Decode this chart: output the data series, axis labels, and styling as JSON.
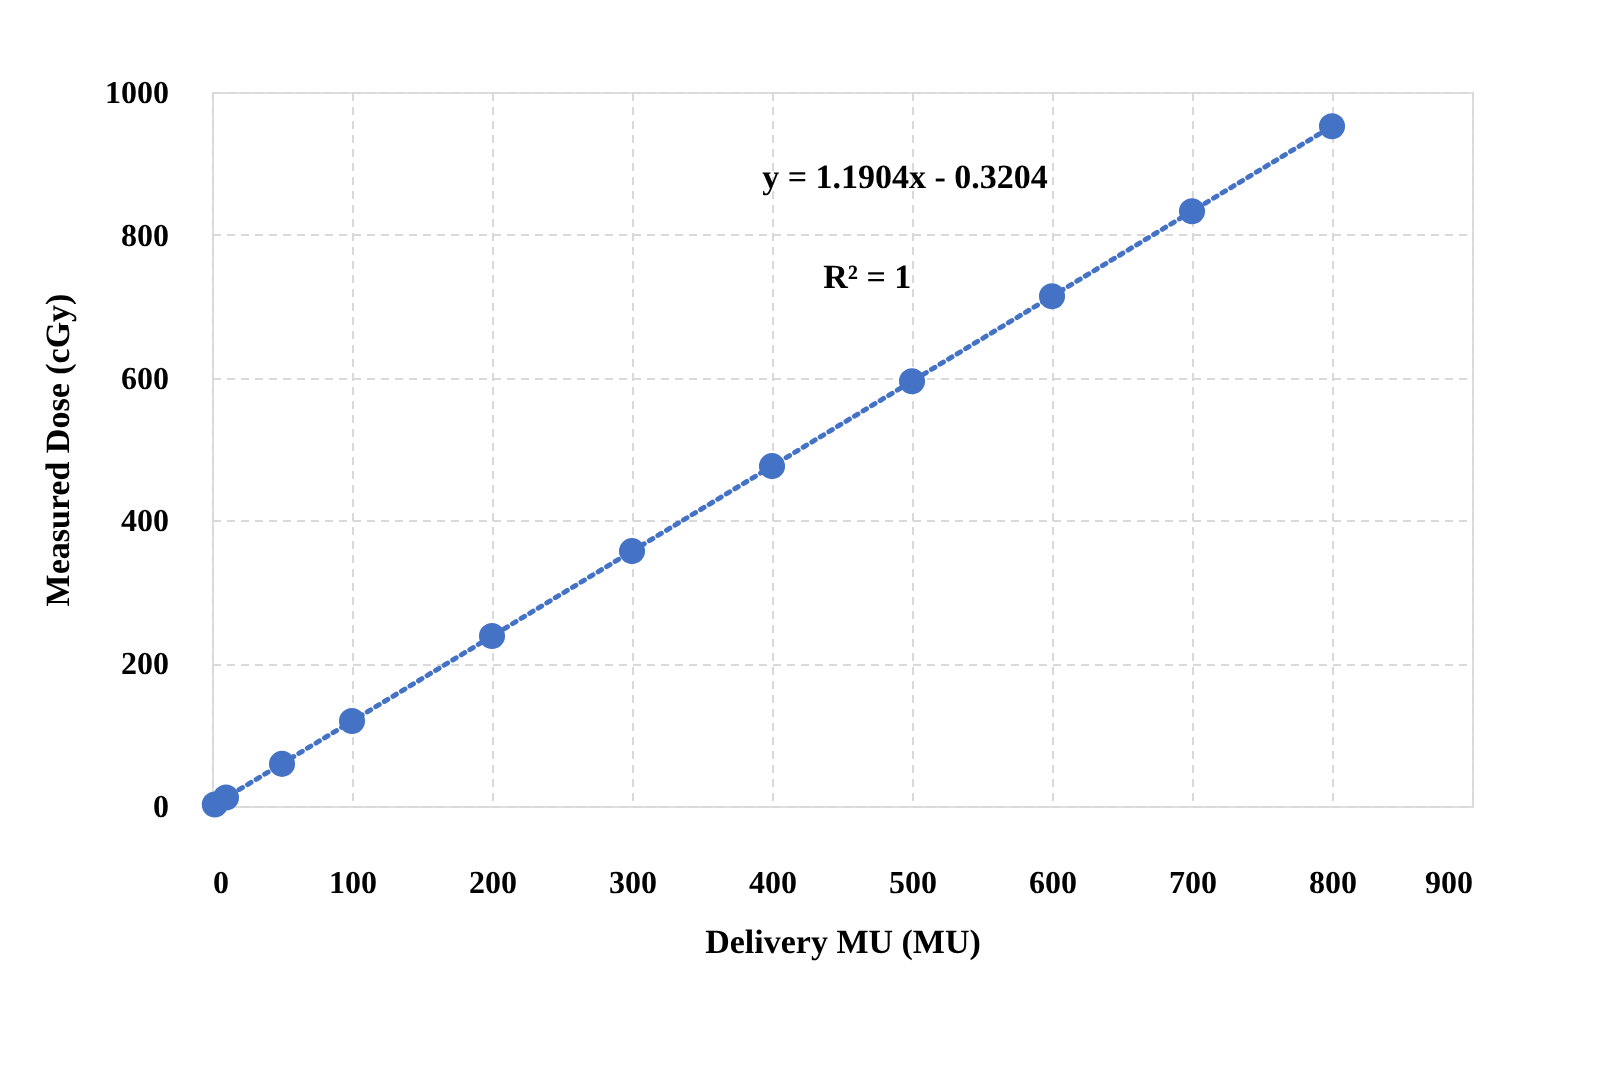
{
  "chart_data": {
    "type": "scatter",
    "xlabel": "Delivery MU (MU)",
    "ylabel": "Measured Dose (cGy)",
    "annotations": [
      "y = 1.1904x - 0.3204",
      "R² = 1"
    ],
    "series": [
      {
        "color": "#4472c4",
        "marker": "circle",
        "x": [
          2,
          10,
          50,
          100,
          200,
          300,
          400,
          500,
          600,
          700,
          800
        ],
        "values": [
          2,
          12,
          59,
          119,
          238,
          357,
          476,
          595,
          714,
          833,
          952
        ]
      },
      {
        "type": "line",
        "color": "#4472c4",
        "line_style": "dotted",
        "x": [
          1,
          800
        ],
        "values": [
          1,
          952
        ]
      }
    ],
    "xlim": [
      0,
      900
    ],
    "xticks": [
      0,
      100,
      200,
      300,
      400,
      500,
      600,
      700,
      800,
      900
    ],
    "ylim": [
      0,
      1000
    ],
    "yticks": [
      0,
      200,
      400,
      600,
      800,
      1000
    ],
    "grid": true
  }
}
